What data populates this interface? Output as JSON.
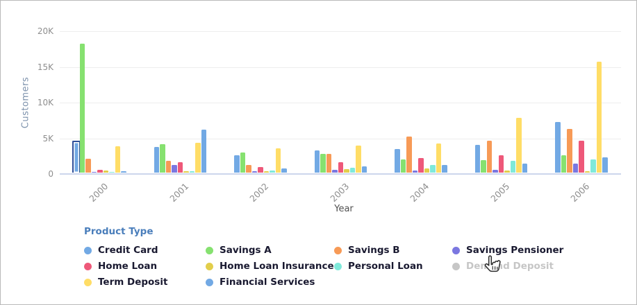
{
  "chart_data": {
    "type": "bar",
    "title": "",
    "xlabel": "Year",
    "ylabel": "Customers",
    "categories": [
      "2000",
      "2001",
      "2002",
      "2003",
      "2004",
      "2005",
      "2006"
    ],
    "y_ticks": [
      {
        "label": "0",
        "value": 0
      },
      {
        "label": "5K",
        "value": 5000
      },
      {
        "label": "10K",
        "value": 10000
      },
      {
        "label": "15K",
        "value": 15000
      },
      {
        "label": "20K",
        "value": 20000
      }
    ],
    "ylim": [
      0,
      20000
    ],
    "grid": true,
    "legend_title": "Product Type",
    "legend_position": "bottom",
    "series": [
      {
        "name": "Credit Card",
        "color": "#72a9e4",
        "visible": true,
        "values": [
          4300,
          3600,
          2450,
          3100,
          3350,
          3850,
          7100
        ]
      },
      {
        "name": "Savings A",
        "color": "#86e170",
        "visible": true,
        "values": [
          18100,
          3950,
          2850,
          2600,
          1850,
          1750,
          2400
        ]
      },
      {
        "name": "Savings B",
        "color": "#f79a56",
        "visible": true,
        "values": [
          1900,
          1650,
          1050,
          2600,
          5050,
          4450,
          6100
        ]
      },
      {
        "name": "Savings Pensioner",
        "color": "#7b77e0",
        "visible": true,
        "values": [
          50,
          1100,
          200,
          350,
          300,
          400,
          1250
        ]
      },
      {
        "name": "Home Loan",
        "color": "#ee5879",
        "visible": true,
        "values": [
          400,
          1450,
          800,
          1450,
          2000,
          2400,
          4500
        ]
      },
      {
        "name": "Home Loan Insurance",
        "color": "#e2ce4b",
        "visible": true,
        "values": [
          250,
          150,
          200,
          450,
          550,
          300,
          150
        ]
      },
      {
        "name": "Personal Loan",
        "color": "#7fe9da",
        "visible": true,
        "values": [
          50,
          200,
          300,
          700,
          1050,
          1650,
          1800
        ]
      },
      {
        "name": "Demand Deposit",
        "color": "#c6c6c6",
        "visible": false,
        "values": []
      },
      {
        "name": "Term Deposit",
        "color": "#ffdd66",
        "visible": true,
        "values": [
          3650,
          4150,
          3400,
          3750,
          4100,
          7650,
          15500
        ]
      },
      {
        "name": "Financial Services",
        "color": "#72a9e4",
        "visible": true,
        "values": [
          150,
          6000,
          600,
          850,
          1050,
          1250,
          2100
        ]
      }
    ],
    "highlight": {
      "series": "Credit Card",
      "category": "2000",
      "border_color": "#2e4e99"
    }
  },
  "cursor": {
    "icon": "hand-pointer",
    "near_label": "Demand Deposit"
  }
}
